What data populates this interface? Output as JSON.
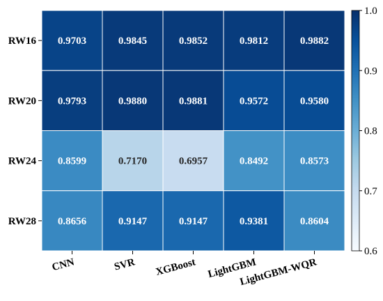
{
  "chart_data": {
    "type": "heatmap",
    "title": "",
    "xlabel": "",
    "ylabel": "",
    "x_categories": [
      "CNN",
      "SVR",
      "XGBoost",
      "LightGBM",
      "LightGBM-WQR"
    ],
    "y_categories": [
      "RW16",
      "RW20",
      "RW24",
      "RW28"
    ],
    "values": [
      [
        0.9703,
        0.9845,
        0.9852,
        0.9812,
        0.9882
      ],
      [
        0.9793,
        0.988,
        0.9881,
        0.9572,
        0.958
      ],
      [
        0.8599,
        0.717,
        0.6957,
        0.8492,
        0.8573
      ],
      [
        0.8656,
        0.9147,
        0.9147,
        0.9381,
        0.8604
      ]
    ],
    "value_labels": [
      [
        "0.9703",
        "0.9845",
        "0.9852",
        "0.9812",
        "0.9882"
      ],
      [
        "0.9793",
        "0.9880",
        "0.9881",
        "0.9572",
        "0.9580"
      ],
      [
        "0.8599",
        "0.7170",
        "0.6957",
        "0.8492",
        "0.8573"
      ],
      [
        "0.8656",
        "0.9147",
        "0.9147",
        "0.9381",
        "0.8604"
      ]
    ],
    "colorbar": {
      "min": 0.6,
      "max": 1.0,
      "ticks": [
        0.6,
        0.7,
        0.8,
        0.9,
        1.0
      ],
      "tick_labels": [
        "0.6",
        "0.7",
        "0.8",
        "0.9",
        "1.0"
      ],
      "colormap": "Blues",
      "low_color": "#f7fbff",
      "high_color": "#08306b"
    },
    "grid": true,
    "legend": "colorbar-right"
  }
}
